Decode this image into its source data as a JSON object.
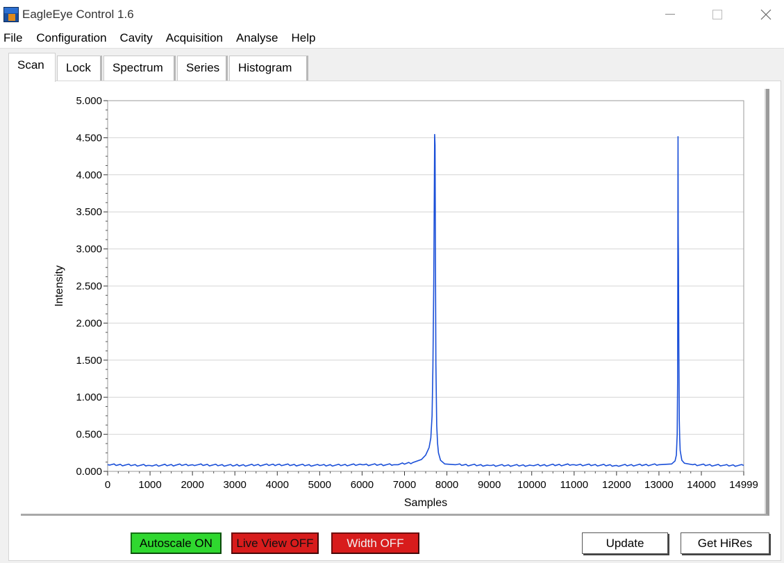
{
  "window": {
    "title": "EagleEye Control 1.6"
  },
  "menu": [
    "File",
    "Configuration",
    "Cavity",
    "Acquisition",
    "Analyse",
    "Help"
  ],
  "tabs": [
    {
      "label": "Scan",
      "active": true
    },
    {
      "label": "Lock",
      "active": false
    },
    {
      "label": "Spectrum",
      "active": false
    },
    {
      "label": "Series",
      "active": false
    },
    {
      "label": "Histogram",
      "active": false
    }
  ],
  "chart_data": {
    "type": "line",
    "title": "",
    "xlabel": "Samples",
    "ylabel": "Intensity",
    "xlim": [
      0,
      14999
    ],
    "ylim": [
      0,
      5
    ],
    "grid": "horizontal",
    "line_color": "#1a4fd8",
    "x_ticks": [
      "0",
      "1000",
      "2000",
      "3000",
      "4000",
      "5000",
      "6000",
      "7000",
      "8000",
      "9000",
      "10000",
      "11000",
      "12000",
      "13000",
      "14000",
      "14999"
    ],
    "y_ticks": [
      "0.000",
      "0.500",
      "1.000",
      "1.500",
      "2.000",
      "2.500",
      "3.000",
      "3.500",
      "4.000",
      "4.500",
      "5.000"
    ],
    "series": [
      {
        "x": [
          0,
          1000,
          2000,
          3000,
          4000,
          5000,
          6000,
          6800,
          7200,
          7400,
          7500,
          7580,
          7620,
          7650,
          7670,
          7690,
          7700,
          7710,
          7720,
          7730,
          7740,
          7760,
          7780,
          7800,
          7850,
          7950,
          8200,
          9000,
          10000,
          11000,
          12000,
          13000,
          13300,
          13380,
          13410,
          13430,
          13440,
          13450,
          13455,
          13460,
          13470,
          13480,
          13490,
          13500,
          13540,
          13600,
          13800,
          14500,
          14999
        ],
        "y": [
          0.09,
          0.08,
          0.09,
          0.08,
          0.09,
          0.08,
          0.09,
          0.09,
          0.12,
          0.16,
          0.22,
          0.32,
          0.45,
          0.75,
          1.4,
          2.5,
          3.4,
          4.55,
          4.4,
          2.8,
          1.45,
          0.62,
          0.38,
          0.25,
          0.15,
          0.1,
          0.09,
          0.08,
          0.08,
          0.09,
          0.08,
          0.09,
          0.1,
          0.14,
          0.22,
          0.5,
          1.2,
          4.52,
          3.2,
          2.86,
          1.6,
          0.7,
          0.45,
          0.28,
          0.15,
          0.11,
          0.09,
          0.08,
          0.08
        ]
      }
    ]
  },
  "buttons": {
    "autoscale": "Autoscale ON",
    "liveview": "Live View OFF",
    "width": "Width OFF",
    "update": "Update",
    "hires": "Get HiRes"
  }
}
